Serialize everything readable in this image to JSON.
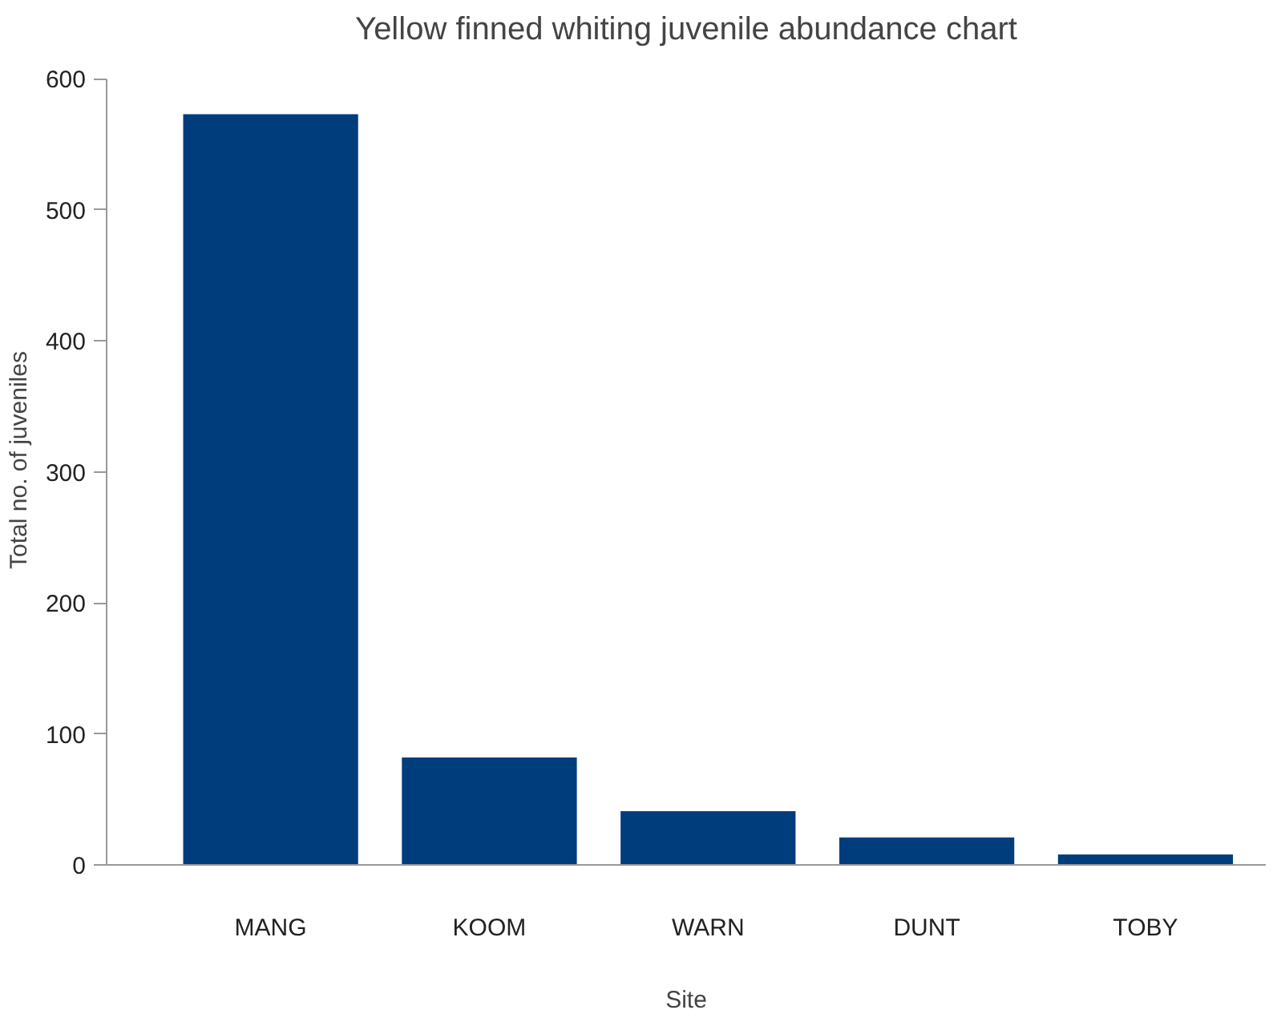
{
  "chart_data": {
    "type": "bar",
    "title": "Yellow finned whiting juvenile abundance chart",
    "xlabel": "Site",
    "ylabel": "Total no. of juveniles",
    "categories": [
      "MANG",
      "KOOM",
      "WARN",
      "DUNT",
      "TOBY"
    ],
    "values": [
      573,
      82,
      41,
      21,
      8
    ],
    "color": "#003d7c",
    "ylim": [
      0,
      600
    ],
    "yticks": [
      0,
      100,
      200,
      300,
      400,
      500,
      600
    ],
    "grid": false
  }
}
